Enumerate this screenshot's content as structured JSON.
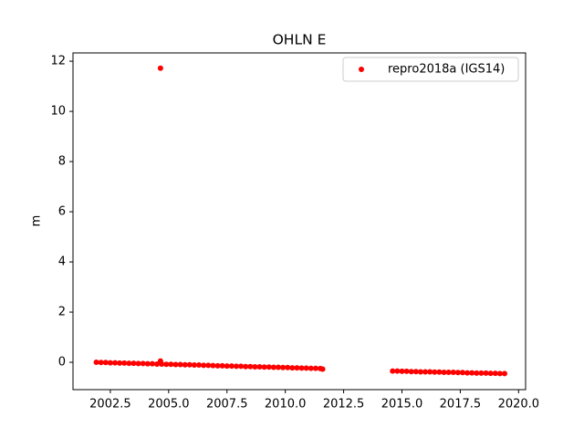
{
  "chart_data": {
    "type": "scatter",
    "title": "OHLN E",
    "ylabel": "m",
    "series": [
      {
        "name": "repro2018a (IGS14)",
        "color": "#ff0000",
        "x": [
          2001.9,
          2002.1,
          2002.3,
          2002.5,
          2002.7,
          2002.9,
          2003.1,
          2003.3,
          2003.5,
          2003.7,
          2003.9,
          2004.1,
          2004.3,
          2004.5,
          2004.7,
          2004.9,
          2005.1,
          2005.3,
          2005.5,
          2005.7,
          2005.9,
          2006.1,
          2006.3,
          2006.5,
          2006.7,
          2006.9,
          2007.1,
          2007.3,
          2007.5,
          2007.7,
          2007.9,
          2008.1,
          2008.3,
          2008.5,
          2008.7,
          2008.9,
          2009.1,
          2009.3,
          2009.5,
          2009.7,
          2009.9,
          2010.1,
          2010.3,
          2010.5,
          2010.7,
          2010.9,
          2011.1,
          2011.3,
          2011.5,
          2011.6,
          2004.65,
          2004.65,
          2014.6,
          2014.8,
          2015.0,
          2015.2,
          2015.4,
          2015.6,
          2015.8,
          2016.0,
          2016.2,
          2016.4,
          2016.6,
          2016.8,
          2017.0,
          2017.2,
          2017.4,
          2017.6,
          2017.8,
          2018.0,
          2018.2,
          2018.4,
          2018.6,
          2018.8,
          2019.0,
          2019.2,
          2019.4
        ],
        "values": [
          0,
          -0.01,
          -0.01,
          -0.02,
          -0.02,
          -0.03,
          -0.03,
          -0.04,
          -0.04,
          -0.05,
          -0.05,
          -0.06,
          -0.06,
          -0.07,
          -0.07,
          -0.08,
          -0.08,
          -0.09,
          -0.09,
          -0.1,
          -0.1,
          -0.11,
          -0.11,
          -0.12,
          -0.12,
          -0.13,
          -0.14,
          -0.14,
          -0.15,
          -0.15,
          -0.16,
          -0.16,
          -0.17,
          -0.17,
          -0.18,
          -0.18,
          -0.19,
          -0.19,
          -0.2,
          -0.2,
          -0.21,
          -0.21,
          -0.22,
          -0.22,
          -0.23,
          -0.23,
          -0.24,
          -0.24,
          -0.25,
          -0.27,
          11.72,
          0.05,
          -0.35,
          -0.35,
          -0.36,
          -0.36,
          -0.37,
          -0.37,
          -0.38,
          -0.38,
          -0.38,
          -0.39,
          -0.39,
          -0.4,
          -0.4,
          -0.4,
          -0.41,
          -0.41,
          -0.42,
          -0.42,
          -0.43,
          -0.43,
          -0.43,
          -0.44,
          -0.44,
          -0.45,
          -0.45
        ]
      }
    ],
    "xlim": [
      2000.9,
      2020.3
    ],
    "ylim": [
      -1.09,
      12.33
    ],
    "xticks": [
      2002.5,
      {
        "value": 2005,
        "label": "2005.0"
      },
      2007.5,
      {
        "value": 2010,
        "label": "2010.0"
      },
      2012.5,
      {
        "value": 2015,
        "label": "2015.0"
      },
      2017.5,
      {
        "value": 2020,
        "label": "2020.0"
      }
    ],
    "yticks": [
      0,
      2,
      4,
      6,
      8,
      10,
      12
    ],
    "legend": "upper right"
  }
}
